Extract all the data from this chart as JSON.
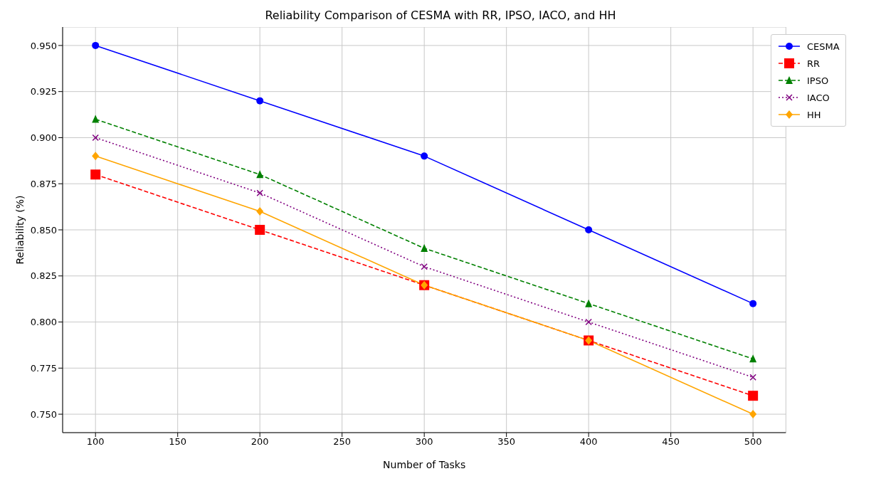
{
  "chart_data": {
    "type": "line",
    "title": "Reliability Comparison of CESMA with RR, IPSO, IACO, and HH",
    "xlabel": "Number of Tasks",
    "ylabel": "Reliability (%)",
    "x": [
      100,
      200,
      300,
      400,
      500
    ],
    "series": [
      {
        "name": "CESMA",
        "color": "#0000ff",
        "marker": "circle",
        "line_style": "solid",
        "values": [
          0.95,
          0.92,
          0.89,
          0.85,
          0.81
        ]
      },
      {
        "name": "RR",
        "color": "#ff0000",
        "marker": "square",
        "line_style": "dashed",
        "values": [
          0.88,
          0.85,
          0.82,
          0.79,
          0.76
        ]
      },
      {
        "name": "IPSO",
        "color": "#008000",
        "marker": "triangle",
        "line_style": "dashed",
        "values": [
          0.91,
          0.88,
          0.84,
          0.81,
          0.78
        ]
      },
      {
        "name": "IACO",
        "color": "#800080",
        "marker": "cross",
        "line_style": "dotted",
        "values": [
          0.9,
          0.87,
          0.83,
          0.8,
          0.77
        ]
      },
      {
        "name": "HH",
        "color": "#ffa500",
        "marker": "diamond",
        "line_style": "solid",
        "values": [
          0.89,
          0.86,
          0.82,
          0.79,
          0.75
        ]
      }
    ],
    "xlim": [
      80,
      520
    ],
    "xticks": [
      100,
      150,
      200,
      250,
      300,
      350,
      400,
      450,
      500
    ],
    "ylim": [
      0.74,
      0.96
    ],
    "yticks": [
      {
        "value": 0.75,
        "label": "0.750"
      },
      {
        "value": 0.775,
        "label": "0.775"
      },
      {
        "value": 0.8,
        "label": "0.800"
      },
      {
        "value": 0.825,
        "label": "0.825"
      },
      {
        "value": 0.85,
        "label": "0.850"
      },
      {
        "value": 0.875,
        "label": "0.875"
      },
      {
        "value": 0.9,
        "label": "0.900"
      },
      {
        "value": 0.925,
        "label": "0.925"
      },
      {
        "value": 0.95,
        "label": "0.950"
      }
    ],
    "grid": true,
    "legend": "top right"
  }
}
